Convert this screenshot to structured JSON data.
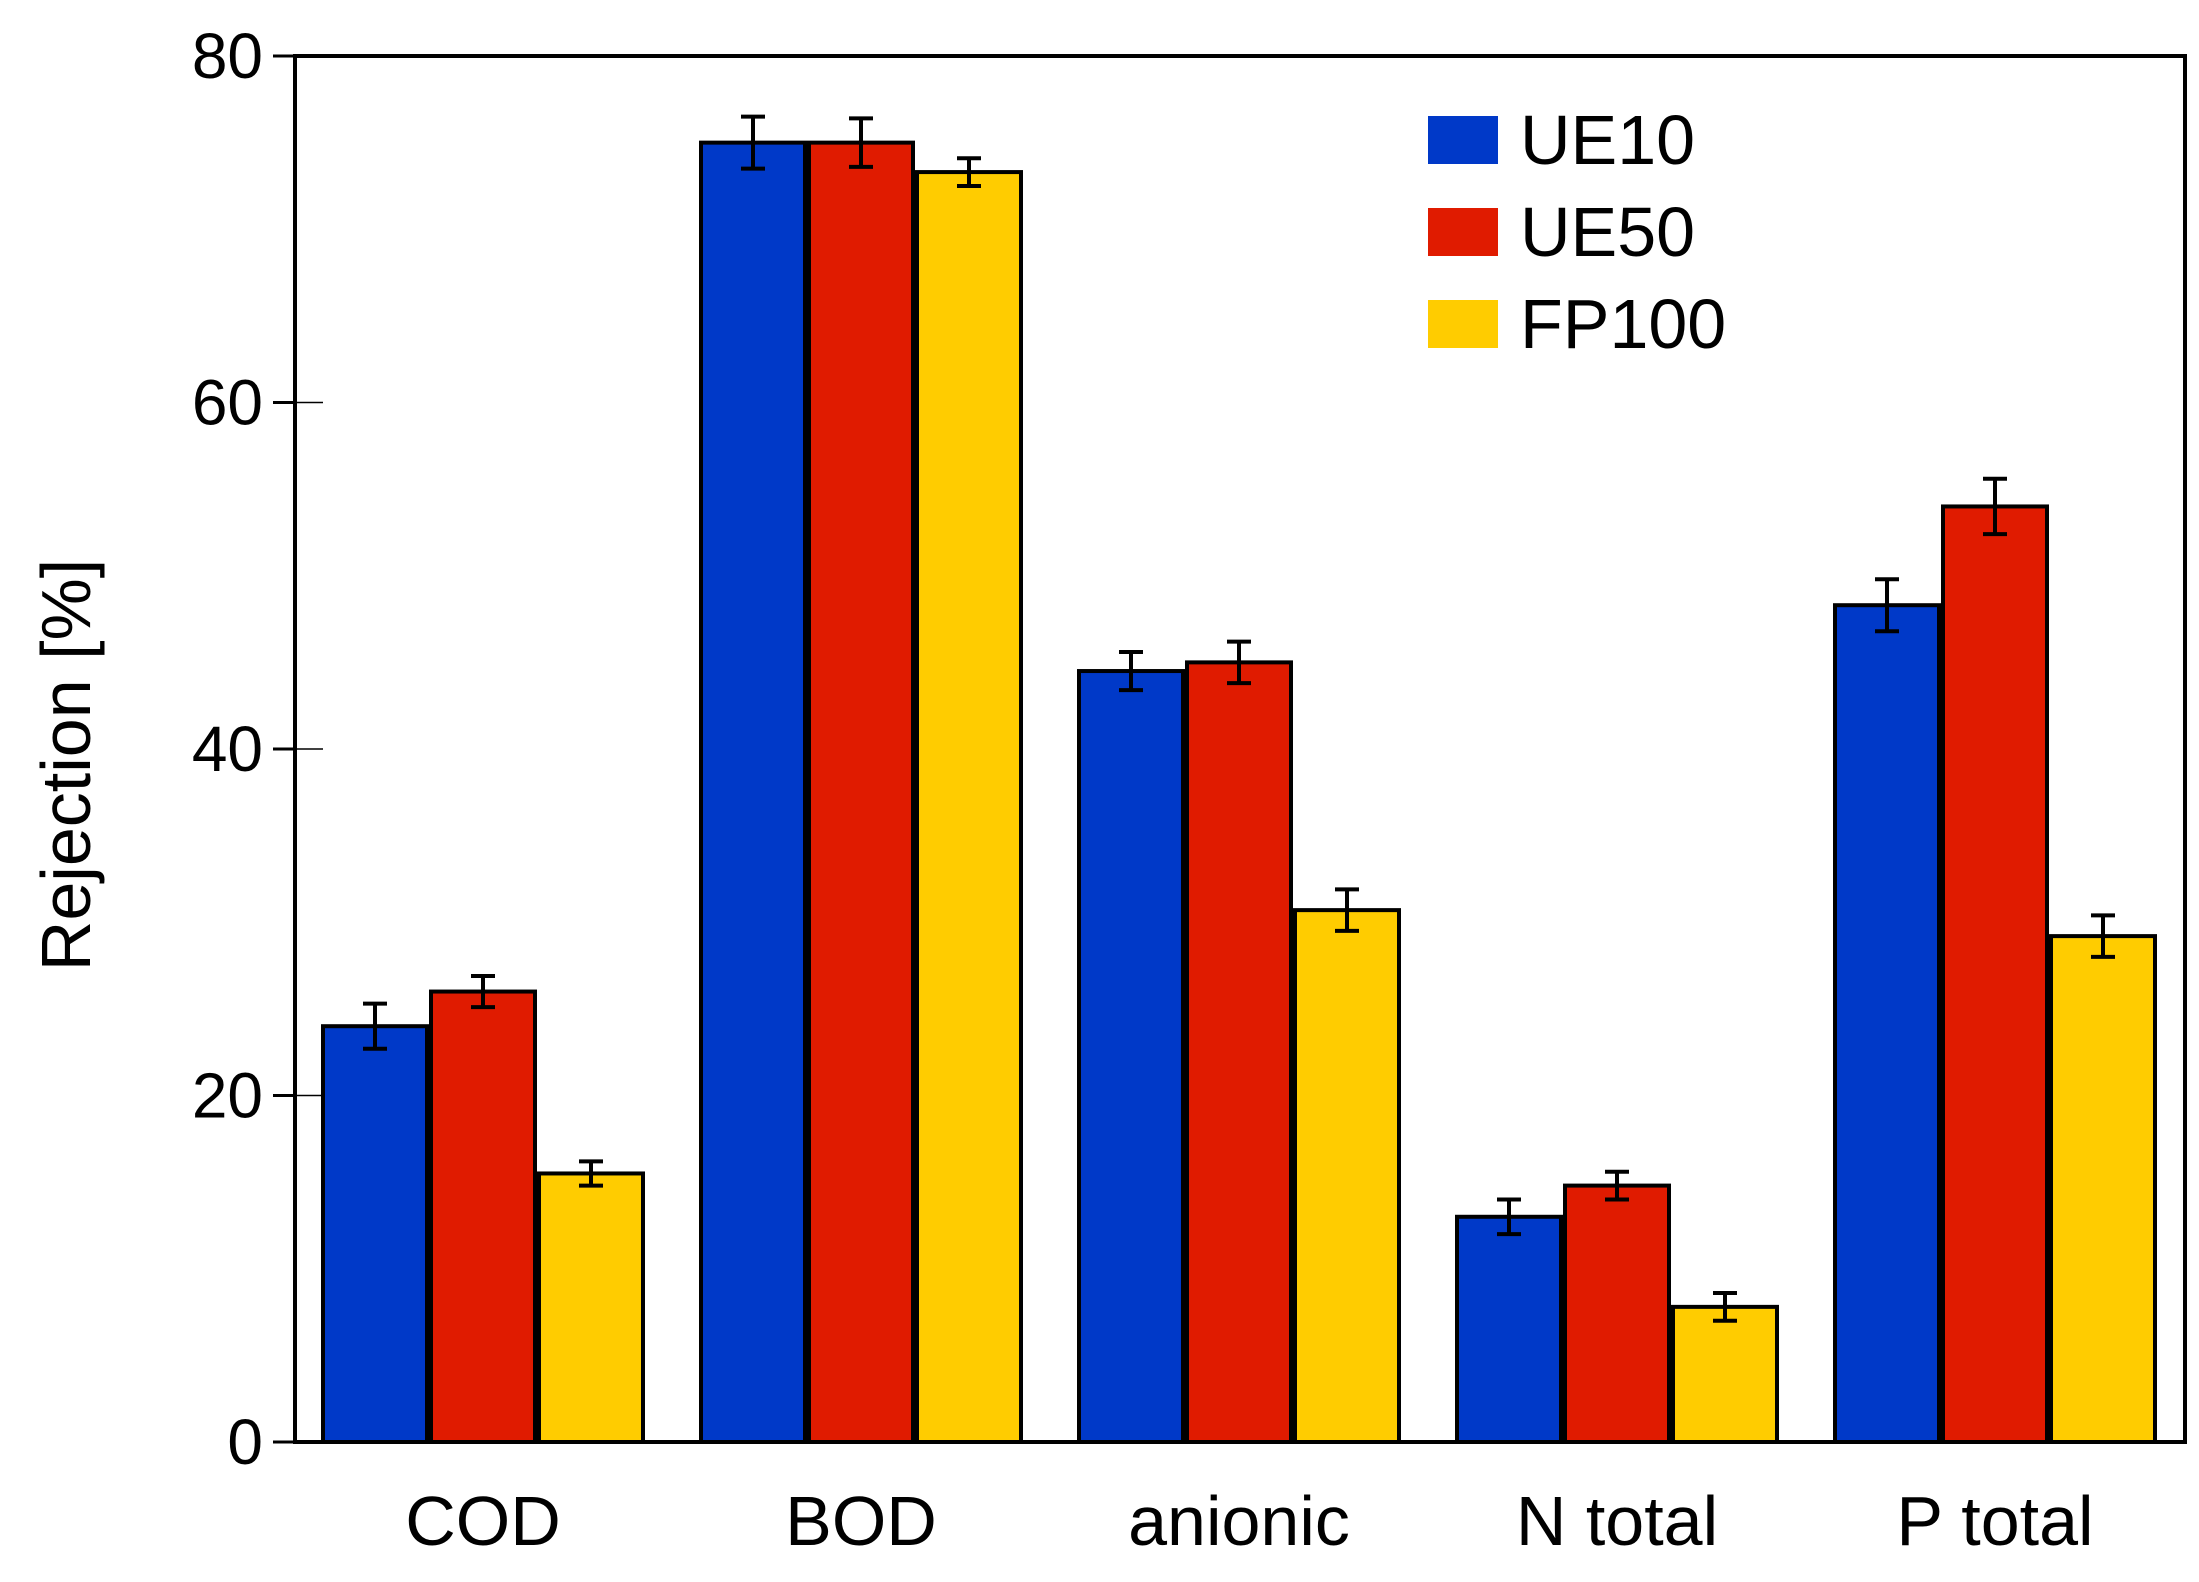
{
  "chart_data": {
    "type": "bar",
    "title": "",
    "xlabel": "",
    "ylabel": "Rejection [%]",
    "ylim": [
      0,
      80
    ],
    "yticks": [
      0,
      20,
      40,
      60,
      80
    ],
    "grid": false,
    "legend_position": "top-right",
    "categories": [
      "COD",
      "BOD",
      "anionic",
      "N total",
      "P total"
    ],
    "series": [
      {
        "name": "UE10",
        "color": "#0039c8",
        "values": [
          24,
          75,
          44.5,
          13,
          48.3
        ],
        "errors": [
          1.3,
          1.5,
          1.1,
          1.0,
          1.5
        ]
      },
      {
        "name": "UE50",
        "color": "#e01b00",
        "values": [
          26,
          75,
          45,
          14.8,
          54
        ],
        "errors": [
          0.9,
          1.4,
          1.2,
          0.8,
          1.6
        ]
      },
      {
        "name": "FP100",
        "color": "#ffcc00",
        "values": [
          15.5,
          73.3,
          30.7,
          7.8,
          29.2
        ],
        "errors": [
          0.7,
          0.8,
          1.2,
          0.8,
          1.2
        ]
      }
    ]
  }
}
